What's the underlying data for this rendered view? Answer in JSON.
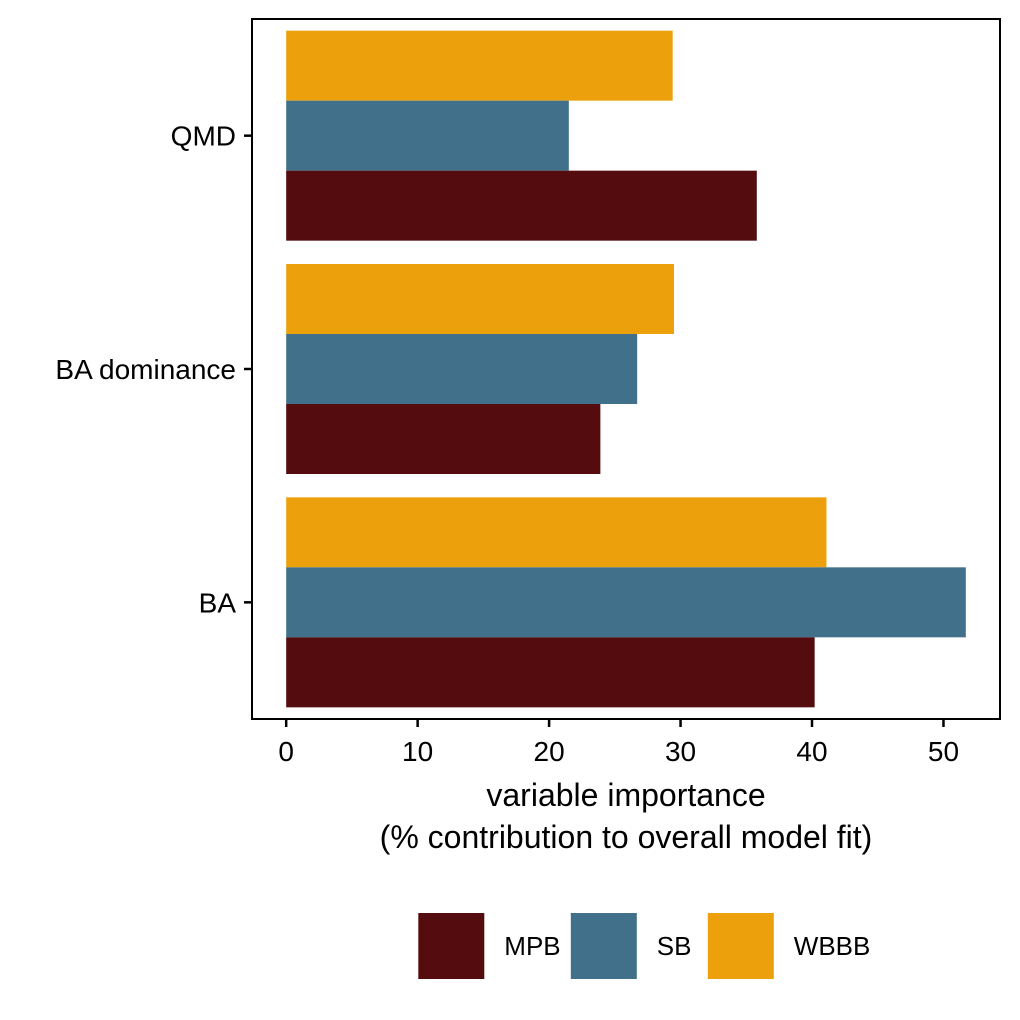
{
  "chart_data": {
    "type": "bar",
    "orientation": "horizontal",
    "categories": [
      "QMD",
      "BA dominance",
      "BA"
    ],
    "series": [
      {
        "name": "MPB",
        "color": "#550c0e",
        "values": [
          35.8,
          23.9,
          40.2
        ]
      },
      {
        "name": "SB",
        "color": "#41708b",
        "values": [
          21.5,
          26.7,
          51.7
        ]
      },
      {
        "name": "WBBB",
        "color": "#eca00c",
        "values": [
          29.4,
          29.5,
          41.1
        ]
      }
    ],
    "title": "",
    "xlabel_line1": "variable importance",
    "xlabel_line2": "(% contribution to overall model fit)",
    "ylabel": "",
    "xlim": [
      -2.6,
      54.3
    ],
    "xticks": [
      0,
      10,
      20,
      30,
      40,
      50
    ],
    "grid": false,
    "legend_position": "bottom"
  }
}
